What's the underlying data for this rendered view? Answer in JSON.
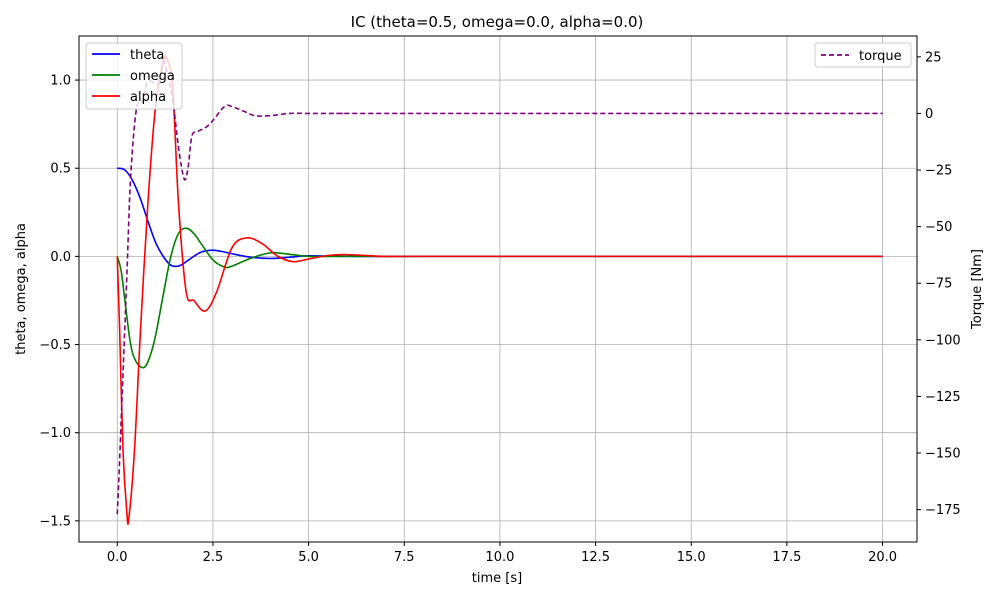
{
  "chart_data": {
    "type": "line",
    "title": "IC (theta=0.5, omega=0.0, alpha=0.0)",
    "xlabel": "time [s]",
    "ylabel_left": "theta, omega, alpha",
    "ylabel_right": "Torque [Nm]",
    "xlim": [
      -1.0,
      20.9
    ],
    "ylim_left": [
      -1.62,
      1.25
    ],
    "ylim_right": [
      -189.3,
      34.2
    ],
    "xticks": [
      "0.0",
      "2.5",
      "5.0",
      "7.5",
      "10.0",
      "12.5",
      "15.0",
      "17.5",
      "20.0"
    ],
    "yticks_left": [
      "−1.5",
      "−1.0",
      "−0.5",
      "0.0",
      "0.5",
      "1.0"
    ],
    "yticks_right": [
      "−175",
      "−150",
      "−125",
      "−100",
      "−75",
      "−50",
      "−25",
      "0",
      "25"
    ],
    "grid": true,
    "legend_left_position": "upper-left",
    "legend_right_position": "upper-right",
    "series_left": [
      {
        "name": "theta",
        "color": "#0000ff",
        "style": "solid",
        "x": [
          0,
          0.2,
          0.4,
          0.6,
          0.8,
          1.0,
          1.2,
          1.4,
          1.6,
          1.8,
          2.0,
          2.2,
          2.5,
          2.8,
          3.0,
          3.5,
          4.0,
          4.5,
          5.0,
          6.0,
          8.0,
          20.0
        ],
        "y": [
          0.5,
          0.49,
          0.43,
          0.33,
          0.2,
          0.08,
          0.0,
          -0.05,
          -0.055,
          -0.03,
          0.0,
          0.025,
          0.035,
          0.025,
          0.015,
          -0.005,
          -0.012,
          -0.005,
          0.003,
          0.0,
          0.0,
          0.0
        ]
      },
      {
        "name": "omega",
        "color": "#008000",
        "style": "solid",
        "x": [
          0,
          0.1,
          0.2,
          0.35,
          0.5,
          0.7,
          0.85,
          1.0,
          1.2,
          1.4,
          1.6,
          1.8,
          2.0,
          2.2,
          2.5,
          2.8,
          3.0,
          3.5,
          4.0,
          4.5,
          5.0,
          6.0,
          8.0,
          20.0
        ],
        "y": [
          0.0,
          -0.08,
          -0.25,
          -0.5,
          -0.6,
          -0.63,
          -0.57,
          -0.45,
          -0.22,
          0.0,
          0.13,
          0.16,
          0.13,
          0.07,
          -0.02,
          -0.06,
          -0.055,
          -0.01,
          0.02,
          0.012,
          0.0,
          0.0,
          0.0,
          0.0
        ]
      },
      {
        "name": "alpha",
        "color": "#ff0000",
        "style": "solid",
        "x": [
          0,
          0.06,
          0.15,
          0.25,
          0.3,
          0.45,
          0.6,
          0.8,
          1.0,
          1.2,
          1.3,
          1.45,
          1.6,
          1.8,
          2.0,
          2.3,
          2.6,
          3.0,
          3.4,
          3.8,
          4.2,
          4.6,
          5.0,
          5.5,
          6.0,
          7.0,
          8.0,
          20.0
        ],
        "y": [
          0.0,
          -0.4,
          -1.1,
          -1.45,
          -1.49,
          -1.1,
          -0.45,
          0.3,
          0.85,
          1.1,
          1.12,
          0.95,
          0.3,
          -0.2,
          -0.25,
          -0.31,
          -0.2,
          0.05,
          0.105,
          0.07,
          0.0,
          -0.03,
          -0.015,
          0.005,
          0.01,
          0.0,
          0.0,
          0.0
        ]
      }
    ],
    "series_right": [
      {
        "name": "torque",
        "color": "#800080",
        "style": "dashed",
        "x": [
          0,
          0.05,
          0.15,
          0.25,
          0.35,
          0.5,
          0.65,
          0.8,
          1.0,
          1.1,
          1.2,
          1.3,
          1.45,
          1.6,
          1.75,
          1.85,
          1.95,
          2.1,
          2.4,
          2.8,
          3.0,
          3.3,
          3.6,
          4.0,
          4.5,
          5.0,
          5.5,
          6.0,
          7.0,
          20.0
        ],
        "y": [
          -177,
          -158,
          -115,
          -72,
          -28,
          2,
          5,
          14,
          13,
          14,
          23,
          18,
          6,
          -15,
          -29,
          -24,
          -10,
          -8,
          -5,
          3,
          3,
          1,
          -1,
          -1,
          0,
          0,
          0,
          0,
          0,
          0
        ]
      }
    ]
  }
}
